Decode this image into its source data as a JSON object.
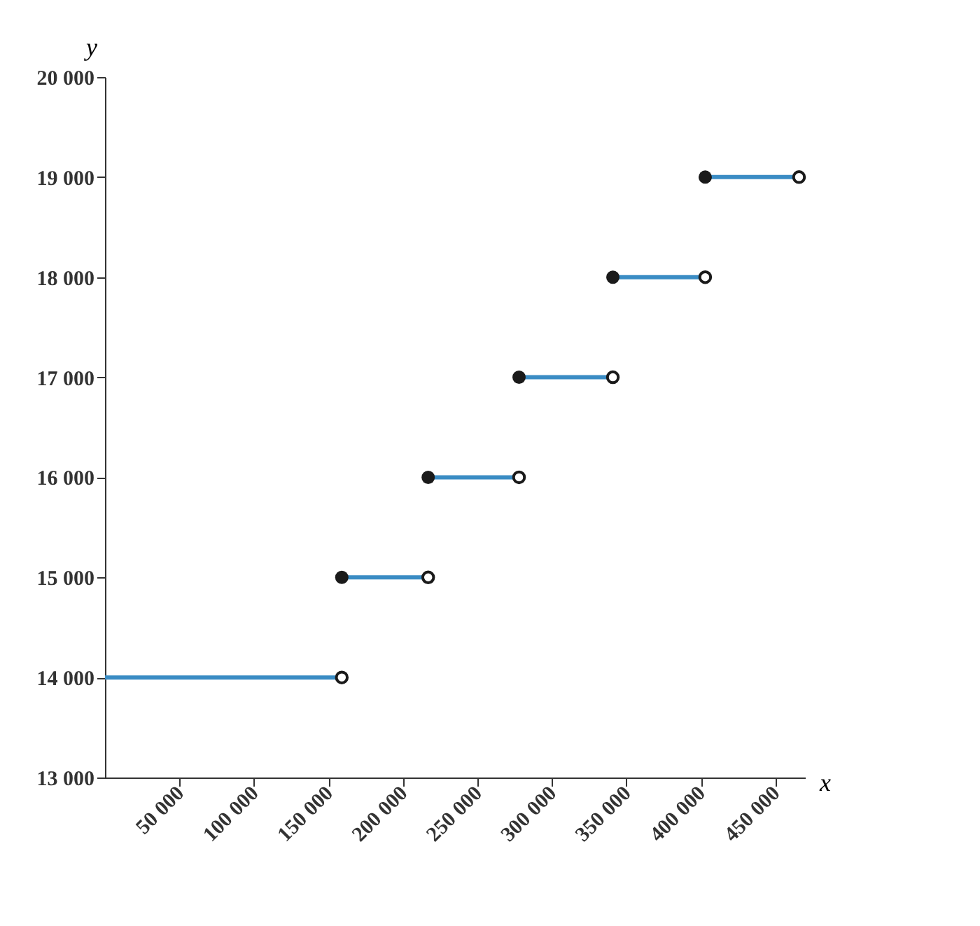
{
  "chart_data": {
    "type": "line",
    "xlabel": "x",
    "ylabel": "y",
    "series": [
      {
        "color": "#3a8cc4",
        "x": [
          0,
          159000
        ],
        "values": [
          14000,
          14000
        ]
      },
      {
        "color": "#3a8cc4",
        "x": [
          159000,
          217000
        ],
        "values": [
          15000,
          15000
        ]
      },
      {
        "color": "#3a8cc4",
        "x": [
          217000,
          278000
        ],
        "values": [
          16000,
          16000
        ]
      },
      {
        "color": "#3a8cc4",
        "x": [
          278000,
          341000
        ],
        "values": [
          17000,
          17000
        ]
      },
      {
        "color": "#3a8cc4",
        "x": [
          341000,
          403000
        ],
        "values": [
          18000,
          18000
        ]
      },
      {
        "color": "#3a8cc4",
        "x": [
          403000,
          466000
        ],
        "values": [
          19000,
          19000
        ]
      }
    ],
    "xlim": [
      0,
      470000
    ],
    "xticks": [
      {
        "value": 50000,
        "label": "50 000"
      },
      {
        "value": 100000,
        "label": "100 000"
      },
      {
        "value": 150000,
        "label": "150 000"
      },
      {
        "value": 200000,
        "label": "200 000"
      },
      {
        "value": 250000,
        "label": "250 000"
      },
      {
        "value": 300000,
        "label": "300 000"
      },
      {
        "value": 350000,
        "label": "350 000"
      },
      {
        "value": 400000,
        "label": "400 000"
      },
      {
        "value": 450000,
        "label": "450 000"
      }
    ],
    "ylim": [
      13000,
      20000
    ],
    "yticks": [
      {
        "value": 13000,
        "label": "13 000"
      },
      {
        "value": 14000,
        "label": "14 000"
      },
      {
        "value": 15000,
        "label": "15 000"
      },
      {
        "value": 16000,
        "label": "16 000"
      },
      {
        "value": 17000,
        "label": "17 000"
      },
      {
        "value": 18000,
        "label": "18 000"
      },
      {
        "value": 19000,
        "label": "19 000"
      },
      {
        "value": 20000,
        "label": "20 000"
      }
    ],
    "grid": false,
    "marker": "circle",
    "line_style": "solid"
  }
}
